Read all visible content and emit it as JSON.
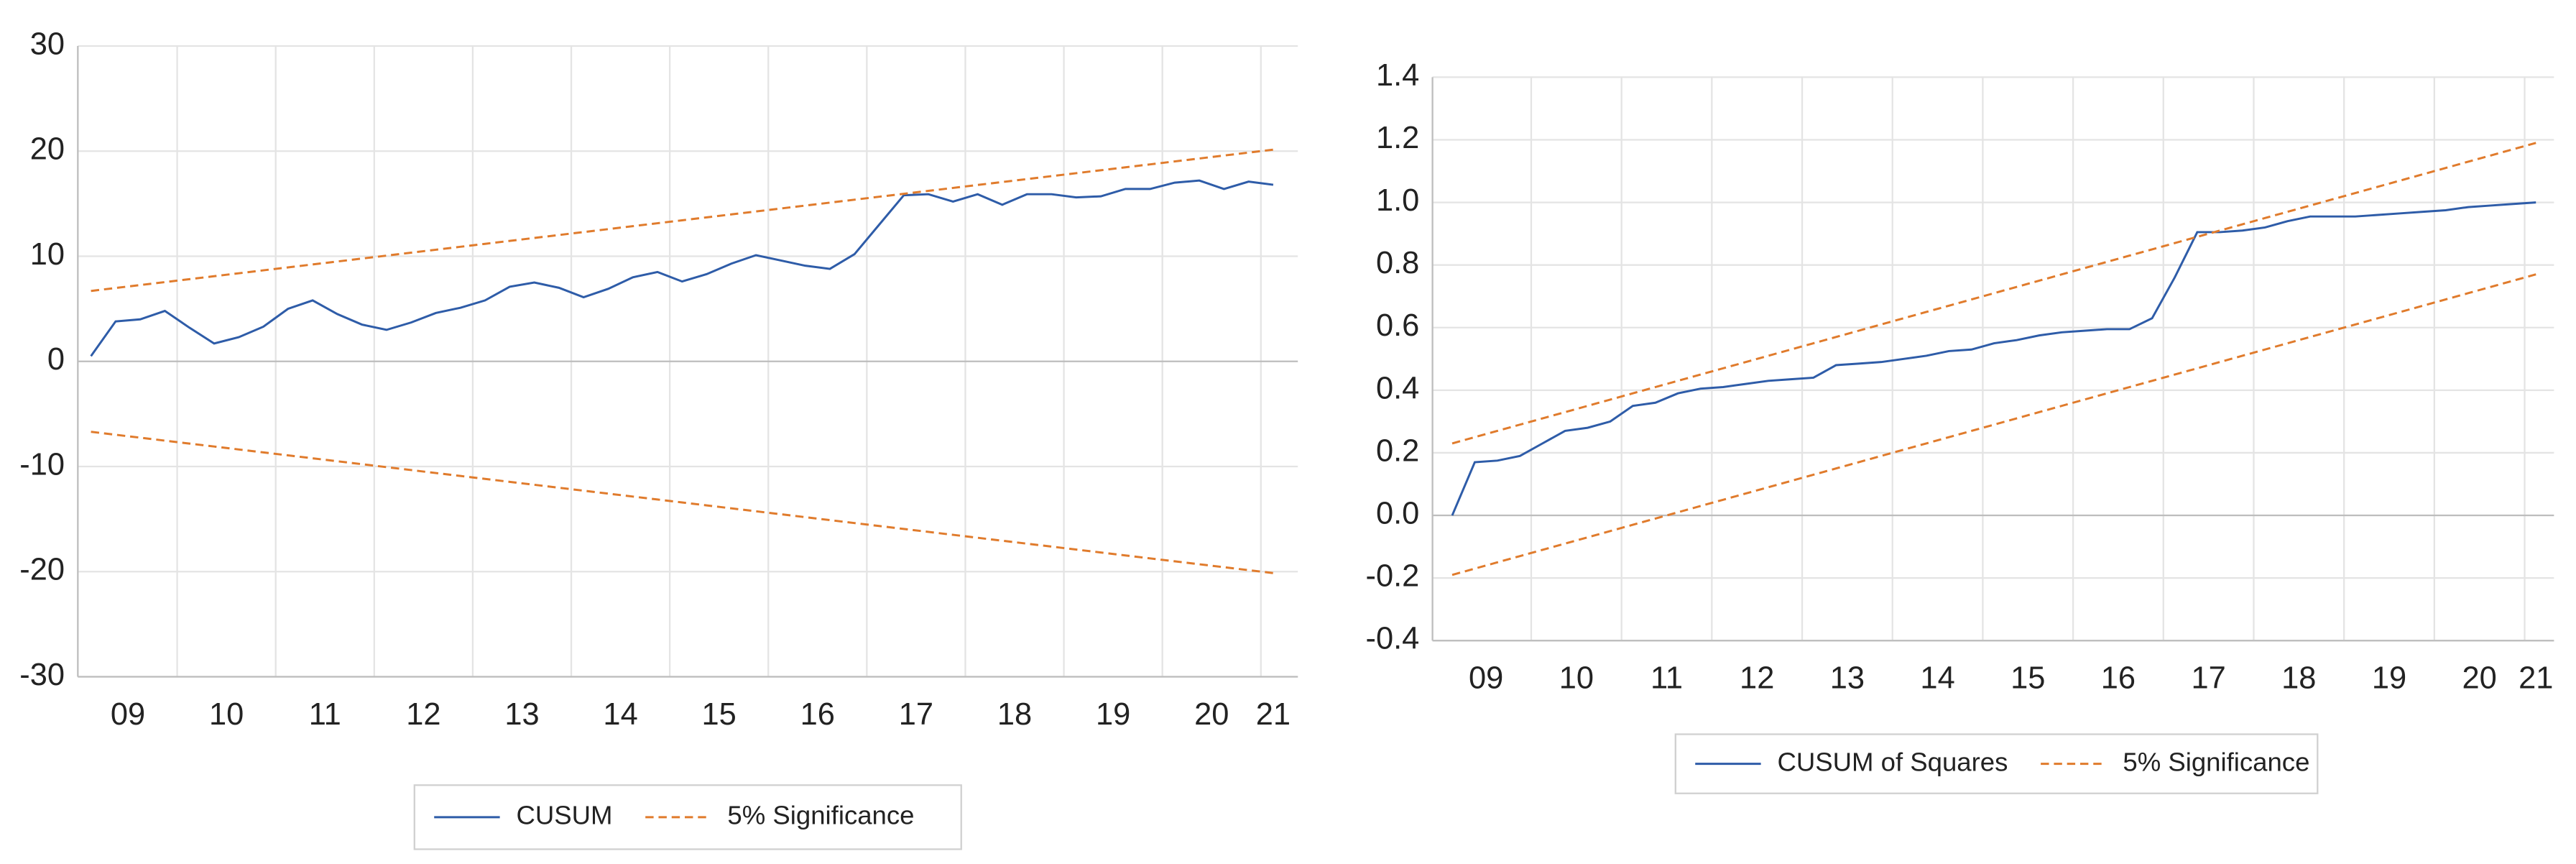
{
  "chart_data": [
    {
      "type": "line",
      "categories": [
        null,
        null,
        "09",
        null,
        null,
        null,
        "10",
        null,
        null,
        null,
        "11",
        null,
        null,
        null,
        "12",
        null,
        null,
        null,
        "13",
        null,
        null,
        null,
        "14",
        null,
        null,
        null,
        "15",
        null,
        null,
        null,
        "16",
        null,
        null,
        null,
        "17",
        null,
        null,
        null,
        "18",
        null,
        null,
        null,
        "19",
        null,
        null,
        null,
        "20",
        null,
        "21"
      ],
      "series": [
        {
          "name": "CUSUM",
          "color": "#2e5ca8",
          "dash": false,
          "values": [
            0.5,
            3.8,
            4.0,
            4.8,
            3.2,
            1.7,
            2.3,
            3.3,
            5.0,
            5.8,
            4.5,
            3.5,
            3.0,
            3.7,
            4.6,
            5.1,
            5.8,
            7.1,
            7.5,
            7.0,
            6.1,
            6.9,
            8.0,
            8.5,
            7.6,
            8.3,
            9.3,
            10.1,
            9.6,
            9.1,
            8.8,
            10.2,
            13.0,
            15.8,
            15.9,
            15.2,
            15.9,
            14.9,
            15.9,
            15.9,
            15.6,
            15.7,
            16.4,
            16.4,
            17.0,
            17.2,
            16.4,
            17.1,
            16.8
          ]
        },
        {
          "name": "5% Significance",
          "color": "#e07b2c",
          "dash": true,
          "values": [
            6.7,
            6.98,
            7.26,
            7.54,
            7.82,
            8.1,
            8.38,
            8.66,
            8.94,
            9.22,
            9.5,
            9.78,
            10.06,
            10.34,
            10.62,
            10.9,
            11.18,
            11.46,
            11.74,
            12.02,
            12.3,
            12.58,
            12.86,
            13.14,
            13.42,
            13.7,
            13.98,
            14.26,
            14.54,
            14.82,
            15.1,
            15.38,
            15.66,
            15.94,
            16.22,
            16.5,
            16.78,
            17.06,
            17.34,
            17.62,
            17.9,
            18.18,
            18.46,
            18.74,
            19.02,
            19.3,
            19.58,
            19.86,
            20.14
          ],
          "lower": [
            -6.7,
            -6.98,
            -7.26,
            -7.54,
            -7.82,
            -8.1,
            -8.38,
            -8.66,
            -8.94,
            -9.22,
            -9.5,
            -9.78,
            -10.06,
            -10.34,
            -10.62,
            -10.9,
            -11.18,
            -11.46,
            -11.74,
            -12.02,
            -12.3,
            -12.58,
            -12.86,
            -13.14,
            -13.42,
            -13.7,
            -13.98,
            -14.26,
            -14.54,
            -14.82,
            -15.1,
            -15.38,
            -15.66,
            -15.94,
            -16.22,
            -16.5,
            -16.78,
            -17.06,
            -17.34,
            -17.62,
            -17.9,
            -18.18,
            -18.46,
            -18.74,
            -19.02,
            -19.3,
            -19.58,
            -19.86,
            -20.14
          ]
        }
      ],
      "ylim": [
        -30,
        30
      ],
      "yticks": [
        -30,
        -20,
        -10,
        0,
        10,
        20,
        30
      ],
      "grid": true,
      "legend": "bottom"
    },
    {
      "type": "line",
      "categories": [
        null,
        null,
        "09",
        null,
        null,
        null,
        "10",
        null,
        null,
        null,
        "11",
        null,
        null,
        null,
        "12",
        null,
        null,
        null,
        "13",
        null,
        null,
        null,
        "14",
        null,
        null,
        null,
        "15",
        null,
        null,
        null,
        "16",
        null,
        null,
        null,
        "17",
        null,
        null,
        null,
        "18",
        null,
        null,
        null,
        "19",
        null,
        null,
        null,
        "20",
        null,
        "21"
      ],
      "series": [
        {
          "name": "CUSUM of Squares",
          "color": "#2e5ca8",
          "dash": false,
          "values": [
            0,
            0.17,
            0.175,
            0.19,
            0.23,
            0.27,
            0.28,
            0.3,
            0.35,
            0.36,
            0.39,
            0.405,
            0.41,
            0.42,
            0.43,
            0.435,
            0.44,
            0.48,
            0.485,
            0.49,
            0.5,
            0.51,
            0.525,
            0.53,
            0.55,
            0.56,
            0.575,
            0.585,
            0.59,
            0.595,
            0.595,
            0.63,
            0.76,
            0.905,
            0.905,
            0.91,
            0.92,
            0.94,
            0.955,
            0.955,
            0.955,
            0.96,
            0.965,
            0.97,
            0.975,
            0.985,
            0.99,
            0.995,
            1.0
          ]
        },
        {
          "name": "5% Significance",
          "color": "#e07b2c",
          "dash": true,
          "values": [
            0.23,
            0.25,
            0.27,
            0.29,
            0.31,
            0.33,
            0.35,
            0.37,
            0.39,
            0.41,
            0.43,
            0.45,
            0.47,
            0.49,
            0.51,
            0.53,
            0.55,
            0.57,
            0.59,
            0.61,
            0.63,
            0.65,
            0.67,
            0.69,
            0.71,
            0.73,
            0.75,
            0.77,
            0.79,
            0.81,
            0.83,
            0.85,
            0.87,
            0.89,
            0.91,
            0.93,
            0.95,
            0.97,
            0.99,
            1.01,
            1.03,
            1.05,
            1.07,
            1.09,
            1.11,
            1.13,
            1.15,
            1.17,
            1.19
          ],
          "lower": [
            -0.19,
            -0.17,
            -0.15,
            -0.13,
            -0.11,
            -0.09,
            -0.07,
            -0.05,
            -0.03,
            -0.01,
            0.01,
            0.03,
            0.05,
            0.07,
            0.09,
            0.11,
            0.13,
            0.15,
            0.17,
            0.19,
            0.21,
            0.23,
            0.25,
            0.27,
            0.29,
            0.31,
            0.33,
            0.35,
            0.37,
            0.39,
            0.41,
            0.43,
            0.45,
            0.47,
            0.49,
            0.51,
            0.53,
            0.55,
            0.57,
            0.59,
            0.61,
            0.63,
            0.65,
            0.67,
            0.69,
            0.71,
            0.73,
            0.75,
            0.77
          ]
        }
      ],
      "ylim": [
        -0.4,
        1.4
      ],
      "yticks": [
        -0.4,
        -0.2,
        {
          "value": 0,
          "label": "0.0"
        },
        0.2,
        0.4,
        0.6,
        0.8,
        {
          "value": 1,
          "label": "1.0"
        },
        1.2,
        1.4
      ],
      "grid": true,
      "legend": "bottom"
    }
  ]
}
